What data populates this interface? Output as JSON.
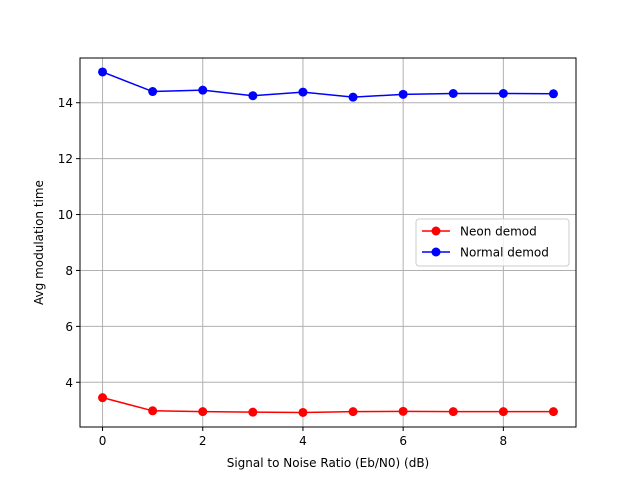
{
  "chart_data": {
    "type": "line",
    "title": "",
    "xlabel": "Signal to Noise Ratio (Eb/N0) (dB)",
    "ylabel": "Avg modulation time",
    "xlim": [
      -0.45,
      9.45
    ],
    "ylim": [
      2.4,
      15.6
    ],
    "xticks": [
      0,
      2,
      4,
      6,
      8
    ],
    "yticks": [
      4,
      6,
      8,
      10,
      12,
      14
    ],
    "grid": true,
    "legend_position": "center-right",
    "series": [
      {
        "name": "Neon demod",
        "color": "#ff0000",
        "marker": "circle",
        "x": [
          0,
          1,
          2,
          3,
          4,
          5,
          6,
          7,
          8,
          9
        ],
        "y": [
          3.45,
          2.98,
          2.95,
          2.93,
          2.92,
          2.95,
          2.96,
          2.95,
          2.95,
          2.95
        ]
      },
      {
        "name": "Normal demod",
        "color": "#0000ff",
        "marker": "circle",
        "x": [
          0,
          1,
          2,
          3,
          4,
          5,
          6,
          7,
          8,
          9
        ],
        "y": [
          15.1,
          14.4,
          14.45,
          14.25,
          14.38,
          14.2,
          14.3,
          14.33,
          14.33,
          14.32
        ]
      }
    ]
  }
}
